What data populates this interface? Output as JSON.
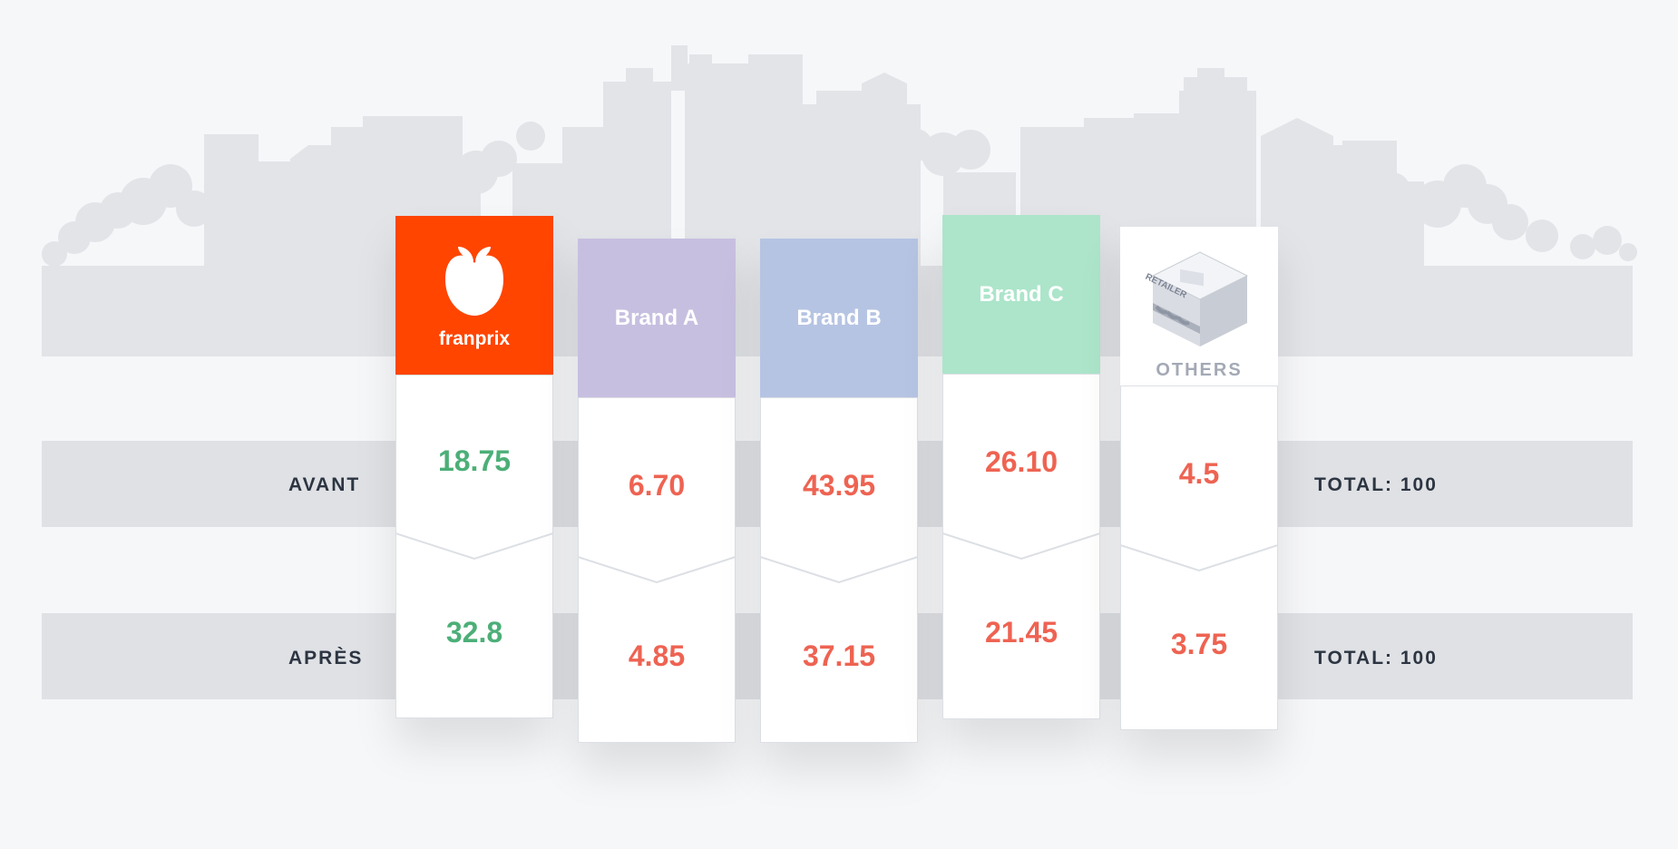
{
  "chart_data": {
    "type": "table",
    "rows": [
      "AVANT",
      "APRÈS"
    ],
    "columns": [
      {
        "name": "franprix",
        "avant": "18.75",
        "apres": "32.8",
        "color": "#ff4500",
        "value_color": "#4caf78"
      },
      {
        "name": "Brand A",
        "avant": "6.70",
        "apres": "4.85",
        "color": "#c7bfe0",
        "value_color": "#ee6352"
      },
      {
        "name": "Brand B",
        "avant": "43.95",
        "apres": "37.15",
        "color": "#b6c4e3",
        "value_color": "#ee6352"
      },
      {
        "name": "Brand C",
        "avant": "26.10",
        "apres": "21.45",
        "color": "#ace5ca",
        "value_color": "#ee6352"
      },
      {
        "name": "OTHERS",
        "avant": "4.5",
        "apres": "3.75",
        "color": "#ffffff",
        "value_color": "#ee6352"
      }
    ],
    "totals": {
      "avant": "TOTAL: 100",
      "apres": "TOTAL: 100"
    }
  },
  "labels": {
    "avant": "AVANT",
    "apres": "APRÈS",
    "total_avant": "TOTAL: 100",
    "total_apres": "TOTAL: 100",
    "franprix_logo": "franprix",
    "brand_a": "Brand A",
    "brand_b": "Brand B",
    "brand_c": "Brand C",
    "others": "OTHERS",
    "retailer_sign": "RETAILER"
  },
  "values": {
    "franprix": {
      "avant": "18.75",
      "apres": "32.8"
    },
    "brand_a": {
      "avant": "6.70",
      "apres": "4.85"
    },
    "brand_b": {
      "avant": "43.95",
      "apres": "37.15"
    },
    "brand_c": {
      "avant": "26.10",
      "apres": "21.45"
    },
    "others": {
      "avant": "4.5",
      "apres": "3.75"
    }
  },
  "colors": {
    "franprix": "#ff4500",
    "brand_a": "#c7bfe0",
    "brand_b": "#b6c4e3",
    "brand_c": "#ace5ca",
    "positive_value": "#4caf78",
    "negative_value": "#ee6352",
    "band": "#dfe1e5",
    "skyline": "#e4e6ea"
  },
  "icons": {
    "skyline": "city-skyline-icon",
    "franprix": "apple-logo-icon",
    "others": "retail-store-icon"
  }
}
